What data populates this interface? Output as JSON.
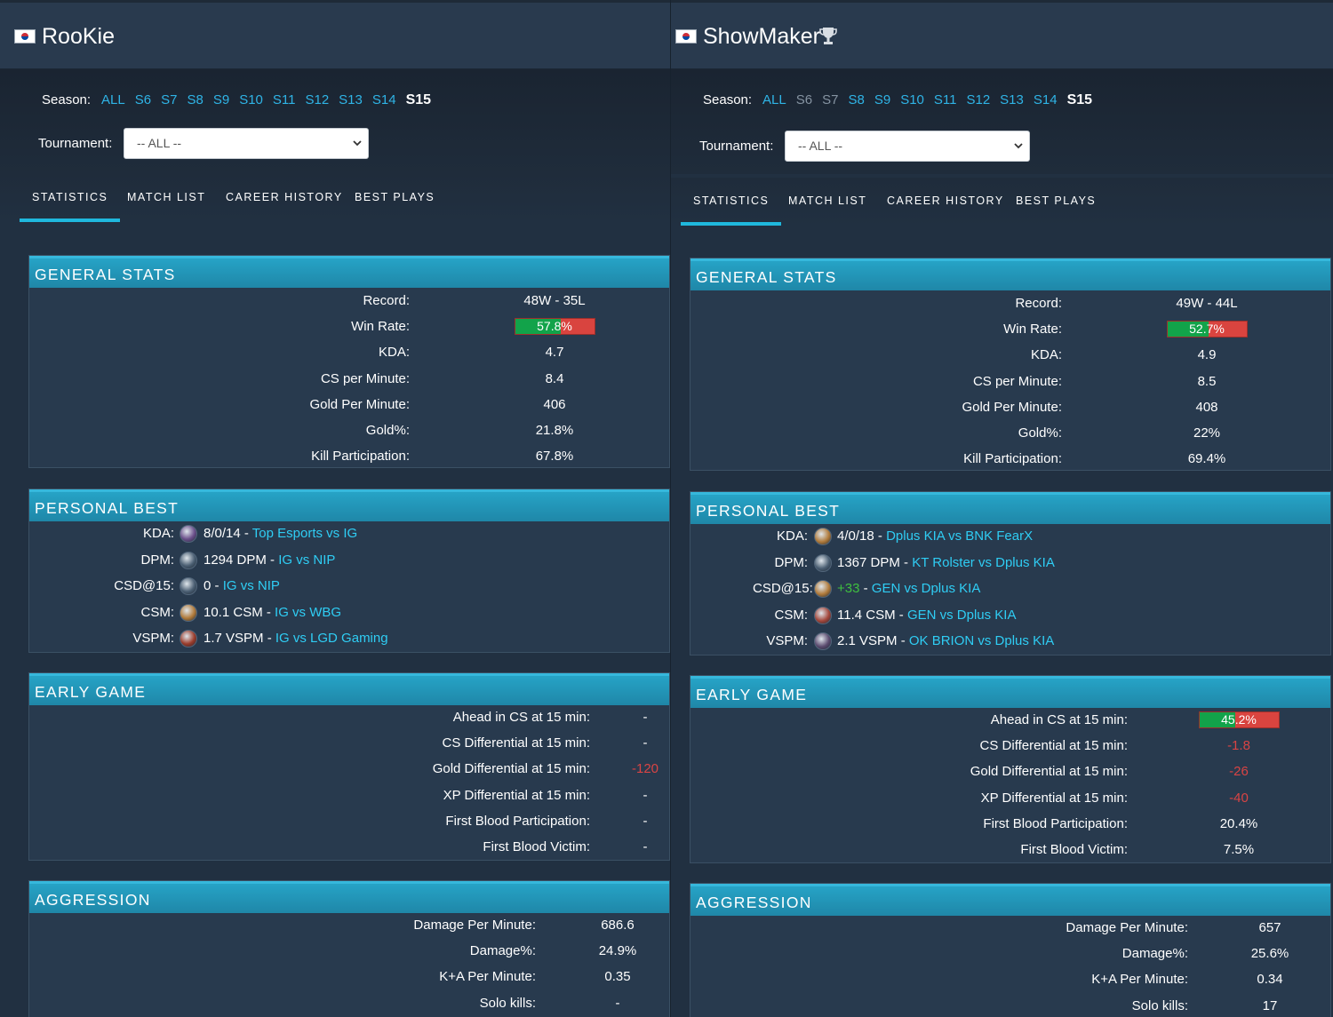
{
  "players": [
    {
      "name": "RooKie",
      "flag": "south-korea-flag-icon",
      "has_trophy": false,
      "season": {
        "label": "Season:",
        "links": [
          {
            "text": "ALL",
            "state": "link"
          },
          {
            "text": "S6",
            "state": "link"
          },
          {
            "text": "S7",
            "state": "link"
          },
          {
            "text": "S8",
            "state": "link"
          },
          {
            "text": "S9",
            "state": "link"
          },
          {
            "text": "S10",
            "state": "link"
          },
          {
            "text": "S11",
            "state": "link"
          },
          {
            "text": "S12",
            "state": "link"
          },
          {
            "text": "S13",
            "state": "link"
          },
          {
            "text": "S14",
            "state": "link"
          },
          {
            "text": "S15",
            "state": "current"
          }
        ]
      },
      "tournament": {
        "label": "Tournament:",
        "value": "-- ALL --"
      },
      "tabs": [
        "STATISTICS",
        "MATCH LIST",
        "CAREER HISTORY",
        "BEST PLAYS"
      ],
      "active_tab": 0,
      "general": {
        "title": "GENERAL STATS",
        "rows": [
          {
            "label": "Record:",
            "value": "48W - 35L"
          },
          {
            "label": "Win Rate:",
            "value": "57.8%",
            "bar": 57.8
          },
          {
            "label": "KDA:",
            "value": "4.7"
          },
          {
            "label": "CS per Minute:",
            "value": "8.4"
          },
          {
            "label": "Gold Per Minute:",
            "value": "406"
          },
          {
            "label": "Gold%:",
            "value": "21.8%"
          },
          {
            "label": "Kill Participation:",
            "value": "67.8%"
          }
        ]
      },
      "personal_best": {
        "title": "PERSONAL BEST",
        "rows": [
          {
            "label": "KDA:",
            "champ_color": "#6b4f8a",
            "stat": "8/0/14",
            "sep": " - ",
            "match": "Top Esports vs IG"
          },
          {
            "label": "DPM:",
            "champ_color": "#4a5e72",
            "stat": "1294 DPM",
            "sep": " - ",
            "match": "IG vs NIP"
          },
          {
            "label": "CSD@15:",
            "champ_color": "#4a5e72",
            "stat": "0",
            "sep": " - ",
            "match": "IG vs NIP"
          },
          {
            "label": "CSM:",
            "champ_color": "#b07a3a",
            "stat": "10.1 CSM",
            "sep": " - ",
            "match": "IG vs WBG"
          },
          {
            "label": "VSPM:",
            "champ_color": "#9a3b2a",
            "stat": "1.7 VSPM",
            "sep": " - ",
            "match": "IG vs LGD Gaming"
          }
        ]
      },
      "early": {
        "title": "EARLY GAME",
        "rows": [
          {
            "label": "Ahead in CS at 15 min:",
            "value": "-"
          },
          {
            "label": "CS Differential at 15 min:",
            "value": "-"
          },
          {
            "label": "Gold Differential at 15 min:",
            "value": "-120",
            "neg": true
          },
          {
            "label": "XP Differential at 15 min:",
            "value": "-"
          },
          {
            "label": "First Blood Participation:",
            "value": "-"
          },
          {
            "label": "First Blood Victim:",
            "value": "-"
          }
        ]
      },
      "aggression": {
        "title": "AGGRESSION",
        "rows": [
          {
            "label": "Damage Per Minute:",
            "value": "686.6"
          },
          {
            "label": "Damage%:",
            "value": "24.9%"
          },
          {
            "label": "K+A Per Minute:",
            "value": "0.35"
          },
          {
            "label": "Solo kills:",
            "value": "-"
          }
        ]
      }
    },
    {
      "name": "ShowMaker",
      "flag": "south-korea-flag-icon",
      "has_trophy": true,
      "season": {
        "label": "Season:",
        "links": [
          {
            "text": "ALL",
            "state": "link"
          },
          {
            "text": "S6",
            "state": "disabled"
          },
          {
            "text": "S7",
            "state": "disabled"
          },
          {
            "text": "S8",
            "state": "link"
          },
          {
            "text": "S9",
            "state": "link"
          },
          {
            "text": "S10",
            "state": "link"
          },
          {
            "text": "S11",
            "state": "link"
          },
          {
            "text": "S12",
            "state": "link"
          },
          {
            "text": "S13",
            "state": "link"
          },
          {
            "text": "S14",
            "state": "link"
          },
          {
            "text": "S15",
            "state": "current"
          }
        ]
      },
      "tournament": {
        "label": "Tournament:",
        "value": "-- ALL --"
      },
      "tabs": [
        "STATISTICS",
        "MATCH LIST",
        "CAREER HISTORY",
        "BEST PLAYS"
      ],
      "active_tab": 0,
      "general": {
        "title": "GENERAL STATS",
        "rows": [
          {
            "label": "Record:",
            "value": "49W - 44L"
          },
          {
            "label": "Win Rate:",
            "value": "52.7%",
            "bar": 52.7
          },
          {
            "label": "KDA:",
            "value": "4.9"
          },
          {
            "label": "CS per Minute:",
            "value": "8.5"
          },
          {
            "label": "Gold Per Minute:",
            "value": "408"
          },
          {
            "label": "Gold%:",
            "value": "22%"
          },
          {
            "label": "Kill Participation:",
            "value": "69.4%"
          }
        ]
      },
      "personal_best": {
        "title": "PERSONAL BEST",
        "rows": [
          {
            "label": "KDA:",
            "champ_color": "#b07a3a",
            "stat": "4/0/18",
            "sep": " - ",
            "match": "Dplus KIA vs BNK FearX"
          },
          {
            "label": "DPM:",
            "champ_color": "#4a5e72",
            "stat": "1367 DPM",
            "sep": " - ",
            "match": "KT Rolster vs Dplus KIA"
          },
          {
            "label": "CSD@15:",
            "champ_color": "#b07a3a",
            "stat": "+33",
            "stat_positive": true,
            "sep": " - ",
            "match": "GEN vs Dplus KIA"
          },
          {
            "label": "CSM:",
            "champ_color": "#a3463a",
            "stat": "11.4 CSM",
            "sep": " - ",
            "match": "GEN vs Dplus KIA"
          },
          {
            "label": "VSPM:",
            "champ_color": "#5a4a6e",
            "stat": "2.1 VSPM",
            "sep": " - ",
            "match": "OK BRION vs Dplus KIA"
          }
        ]
      },
      "early": {
        "title": "EARLY GAME",
        "rows": [
          {
            "label": "Ahead in CS at 15 min:",
            "value": "45.2%",
            "bar": 45.2
          },
          {
            "label": "CS Differential at 15 min:",
            "value": "-1.8",
            "neg": true
          },
          {
            "label": "Gold Differential at 15 min:",
            "value": "-26",
            "neg": true
          },
          {
            "label": "XP Differential at 15 min:",
            "value": "-40",
            "neg": true
          },
          {
            "label": "First Blood Participation:",
            "value": "20.4%"
          },
          {
            "label": "First Blood Victim:",
            "value": "7.5%"
          }
        ]
      },
      "aggression": {
        "title": "AGGRESSION",
        "rows": [
          {
            "label": "Damage Per Minute:",
            "value": "657"
          },
          {
            "label": "Damage%:",
            "value": "25.6%"
          },
          {
            "label": "K+A Per Minute:",
            "value": "0.34"
          },
          {
            "label": "Solo kills:",
            "value": "17"
          }
        ]
      }
    }
  ]
}
